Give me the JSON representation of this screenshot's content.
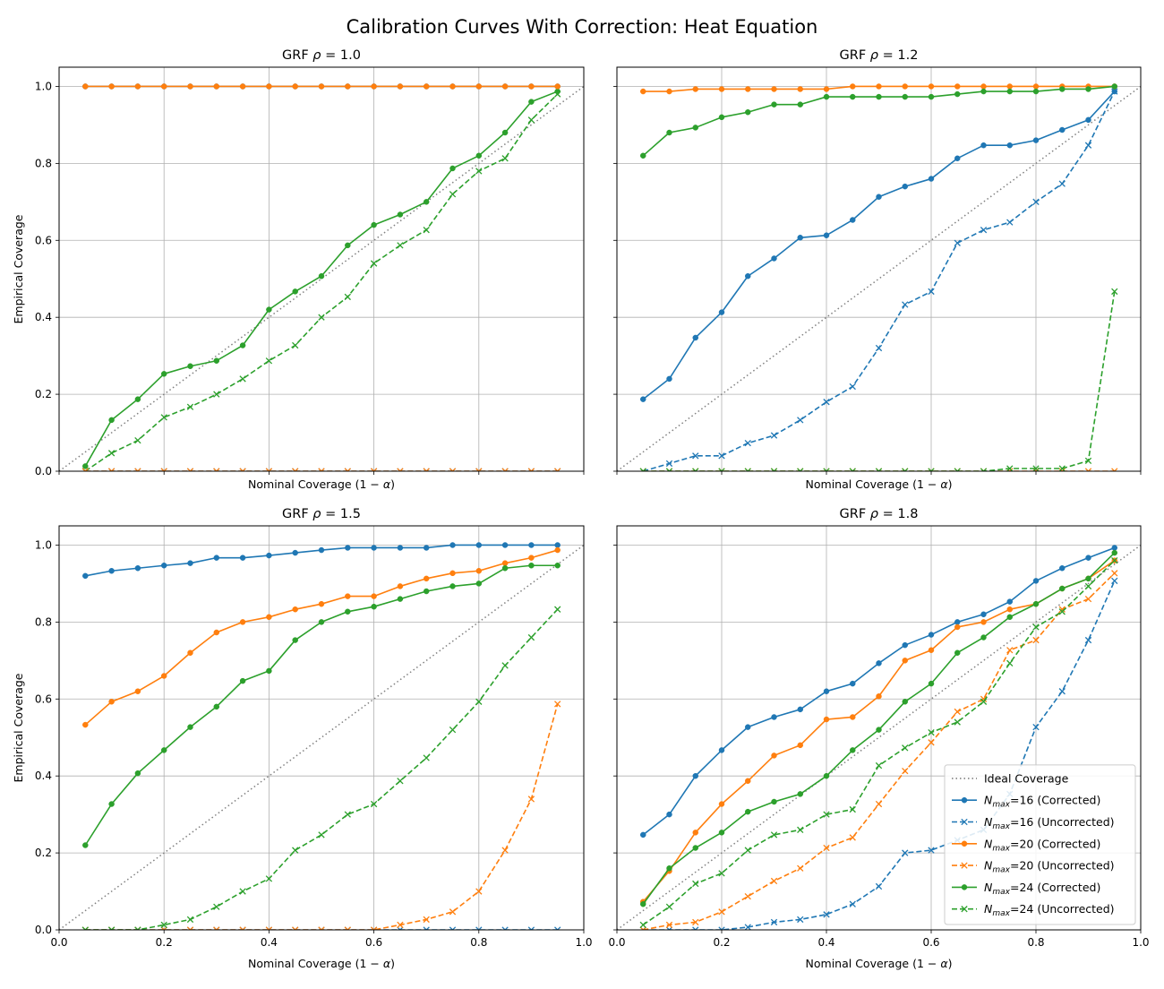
{
  "figure": {
    "title": "Calibration Curves With Correction: Heat Equation"
  },
  "colors": {
    "ideal": "#808080",
    "n16": "#1f77b4",
    "n20": "#ff7f0e",
    "n24": "#2ca02c",
    "grid": "#b0b0b0"
  },
  "chart_data": [
    {
      "type": "line",
      "title_prefix": "GRF ",
      "title_symbol": "ρ",
      "title_value": " = 1.0",
      "xlabel": "Nominal Coverage (1 − α)",
      "ylabel": "Empirical Coverage",
      "xlim": [
        0,
        1
      ],
      "ylim": [
        0,
        1.05
      ],
      "show_xticklabels": false,
      "show_yticklabels": true,
      "show_legend": false,
      "x": [
        0.05,
        0.1,
        0.15,
        0.2,
        0.25,
        0.3,
        0.35,
        0.4,
        0.45,
        0.5,
        0.55,
        0.6,
        0.65,
        0.7,
        0.75,
        0.8,
        0.85,
        0.9,
        0.95
      ],
      "series": [
        {
          "name": "N16 Corrected",
          "color_key": "n16",
          "style": "solid",
          "marker": "dot",
          "values": [
            1,
            1,
            1,
            1,
            1,
            1,
            1,
            1,
            1,
            1,
            1,
            1,
            1,
            1,
            1,
            1,
            1,
            1,
            1
          ]
        },
        {
          "name": "N16 Uncorrected",
          "color_key": "n16",
          "style": "dashed",
          "marker": "x",
          "values": [
            0,
            0,
            0,
            0,
            0,
            0,
            0,
            0,
            0,
            0,
            0,
            0,
            0,
            0,
            0,
            0,
            0,
            0,
            0
          ]
        },
        {
          "name": "N24 Corrected",
          "color_key": "n24",
          "style": "solid",
          "marker": "dot",
          "values": [
            0.013,
            0.133,
            0.187,
            0.253,
            0.273,
            0.287,
            0.327,
            0.42,
            0.467,
            0.507,
            0.587,
            0.64,
            0.667,
            0.7,
            0.787,
            0.82,
            0.88,
            0.96,
            0.987
          ]
        },
        {
          "name": "N24 Uncorrected",
          "color_key": "n24",
          "style": "dashed",
          "marker": "x",
          "values": [
            0,
            0.047,
            0.08,
            0.14,
            0.167,
            0.2,
            0.24,
            0.287,
            0.327,
            0.4,
            0.453,
            0.54,
            0.587,
            0.627,
            0.72,
            0.78,
            0.813,
            0.913,
            0.98
          ]
        },
        {
          "name": "N20 Corrected",
          "color_key": "n20",
          "style": "solid",
          "marker": "dot",
          "values": [
            1,
            1,
            1,
            1,
            1,
            1,
            1,
            1,
            1,
            1,
            1,
            1,
            1,
            1,
            1,
            1,
            1,
            1,
            1
          ]
        },
        {
          "name": "N20 Uncorrected",
          "color_key": "n20",
          "style": "dashed",
          "marker": "x",
          "values": [
            0,
            0,
            0,
            0,
            0,
            0,
            0,
            0,
            0,
            0,
            0,
            0,
            0,
            0,
            0,
            0,
            0,
            0,
            0
          ]
        }
      ]
    },
    {
      "type": "line",
      "title_prefix": "GRF ",
      "title_symbol": "ρ",
      "title_value": " = 1.2",
      "xlabel": "Nominal Coverage (1 − α)",
      "ylabel": "",
      "xlim": [
        0,
        1
      ],
      "ylim": [
        0,
        1.05
      ],
      "show_xticklabels": false,
      "show_yticklabels": false,
      "show_legend": false,
      "x": [
        0.05,
        0.1,
        0.15,
        0.2,
        0.25,
        0.3,
        0.35,
        0.4,
        0.45,
        0.5,
        0.55,
        0.6,
        0.65,
        0.7,
        0.75,
        0.8,
        0.85,
        0.9,
        0.95
      ],
      "series": [
        {
          "name": "N16 Corrected",
          "color_key": "n16",
          "style": "solid",
          "marker": "dot",
          "values": [
            0.187,
            0.24,
            0.347,
            0.413,
            0.507,
            0.553,
            0.607,
            0.613,
            0.653,
            0.713,
            0.74,
            0.76,
            0.813,
            0.847,
            0.847,
            0.86,
            0.887,
            0.913,
            0.987
          ]
        },
        {
          "name": "N16 Uncorrected",
          "color_key": "n16",
          "style": "dashed",
          "marker": "x",
          "values": [
            0,
            0.02,
            0.04,
            0.04,
            0.073,
            0.093,
            0.133,
            0.18,
            0.22,
            0.32,
            0.433,
            0.467,
            0.593,
            0.627,
            0.647,
            0.7,
            0.747,
            0.847,
            0.987
          ]
        },
        {
          "name": "N20 Corrected",
          "color_key": "n20",
          "style": "solid",
          "marker": "dot",
          "values": [
            0.987,
            0.987,
            0.993,
            0.993,
            0.993,
            0.993,
            0.993,
            0.993,
            1,
            1,
            1,
            1,
            1,
            1,
            1,
            1,
            1,
            1,
            1
          ]
        },
        {
          "name": "N20 Uncorrected",
          "color_key": "n20",
          "style": "dashed",
          "marker": "x",
          "values": [
            0,
            0,
            0,
            0,
            0,
            0,
            0,
            0,
            0,
            0,
            0,
            0,
            0,
            0,
            0,
            0,
            0,
            0,
            0
          ]
        },
        {
          "name": "N24 Corrected",
          "color_key": "n24",
          "style": "solid",
          "marker": "dot",
          "values": [
            0.82,
            0.88,
            0.893,
            0.92,
            0.933,
            0.953,
            0.953,
            0.973,
            0.973,
            0.973,
            0.973,
            0.973,
            0.98,
            0.987,
            0.987,
            0.987,
            0.993,
            0.993,
            1
          ]
        },
        {
          "name": "N24 Uncorrected",
          "color_key": "n24",
          "style": "dashed",
          "marker": "x",
          "values": [
            0,
            0,
            0,
            0,
            0,
            0,
            0,
            0,
            0,
            0,
            0,
            0,
            0,
            0,
            0.007,
            0.007,
            0.007,
            0.027,
            0.467
          ]
        }
      ]
    },
    {
      "type": "line",
      "title_prefix": "GRF ",
      "title_symbol": "ρ",
      "title_value": " = 1.5",
      "xlabel": "Nominal Coverage (1 − α)",
      "ylabel": "Empirical Coverage",
      "xlim": [
        0,
        1
      ],
      "ylim": [
        0,
        1.05
      ],
      "show_xticklabels": true,
      "show_yticklabels": true,
      "show_legend": false,
      "x": [
        0.05,
        0.1,
        0.15,
        0.2,
        0.25,
        0.3,
        0.35,
        0.4,
        0.45,
        0.5,
        0.55,
        0.6,
        0.65,
        0.7,
        0.75,
        0.8,
        0.85,
        0.9,
        0.95
      ],
      "series": [
        {
          "name": "N16 Corrected",
          "color_key": "n16",
          "style": "solid",
          "marker": "dot",
          "values": [
            0.92,
            0.933,
            0.94,
            0.947,
            0.953,
            0.967,
            0.967,
            0.973,
            0.98,
            0.987,
            0.993,
            0.993,
            0.993,
            0.993,
            1,
            1,
            1,
            1,
            1
          ]
        },
        {
          "name": "N16 Uncorrected",
          "color_key": "n16",
          "style": "dashed",
          "marker": "x",
          "values": [
            0,
            0,
            0,
            0,
            0,
            0,
            0,
            0,
            0,
            0,
            0,
            0,
            0,
            0,
            0,
            0,
            0,
            0,
            0
          ]
        },
        {
          "name": "N20 Corrected",
          "color_key": "n20",
          "style": "solid",
          "marker": "dot",
          "values": [
            0.533,
            0.593,
            0.62,
            0.66,
            0.72,
            0.773,
            0.8,
            0.813,
            0.833,
            0.847,
            0.867,
            0.867,
            0.893,
            0.913,
            0.927,
            0.933,
            0.953,
            0.967,
            0.987
          ]
        },
        {
          "name": "N20 Uncorrected",
          "color_key": "n20",
          "style": "dashed",
          "marker": "x",
          "values": [
            0,
            0,
            0,
            0,
            0,
            0,
            0,
            0,
            0,
            0,
            0,
            0,
            0.013,
            0.027,
            0.047,
            0.1,
            0.207,
            0.34,
            0.587
          ]
        },
        {
          "name": "N24 Corrected",
          "color_key": "n24",
          "style": "solid",
          "marker": "dot",
          "values": [
            0.22,
            0.327,
            0.407,
            0.467,
            0.527,
            0.58,
            0.647,
            0.673,
            0.753,
            0.8,
            0.827,
            0.84,
            0.86,
            0.88,
            0.893,
            0.9,
            0.94,
            0.947,
            0.947
          ]
        },
        {
          "name": "N24 Uncorrected",
          "color_key": "n24",
          "style": "dashed",
          "marker": "x",
          "values": [
            0,
            0,
            0,
            0.013,
            0.027,
            0.06,
            0.1,
            0.133,
            0.207,
            0.247,
            0.3,
            0.327,
            0.387,
            0.447,
            0.52,
            0.593,
            0.687,
            0.76,
            0.833
          ]
        }
      ]
    },
    {
      "type": "line",
      "title_prefix": "GRF ",
      "title_symbol": "ρ",
      "title_value": " = 1.8",
      "xlabel": "Nominal Coverage (1 − α)",
      "ylabel": "",
      "xlim": [
        0,
        1
      ],
      "ylim": [
        0,
        1.05
      ],
      "show_xticklabels": true,
      "show_yticklabels": false,
      "show_legend": true,
      "x": [
        0.05,
        0.1,
        0.15,
        0.2,
        0.25,
        0.3,
        0.35,
        0.4,
        0.45,
        0.5,
        0.55,
        0.6,
        0.65,
        0.7,
        0.75,
        0.8,
        0.85,
        0.9,
        0.95
      ],
      "series": [
        {
          "name": "N16 Corrected",
          "color_key": "n16",
          "style": "solid",
          "marker": "dot",
          "values": [
            0.247,
            0.3,
            0.4,
            0.467,
            0.527,
            0.553,
            0.573,
            0.62,
            0.64,
            0.693,
            0.74,
            0.767,
            0.8,
            0.82,
            0.853,
            0.907,
            0.94,
            0.967,
            0.993
          ]
        },
        {
          "name": "N16 Uncorrected",
          "color_key": "n16",
          "style": "dashed",
          "marker": "x",
          "values": [
            0,
            0,
            0,
            0,
            0.007,
            0.02,
            0.027,
            0.04,
            0.067,
            0.113,
            0.2,
            0.207,
            0.233,
            0.26,
            0.353,
            0.527,
            0.62,
            0.753,
            0.907
          ]
        },
        {
          "name": "N20 Corrected",
          "color_key": "n20",
          "style": "solid",
          "marker": "dot",
          "values": [
            0.073,
            0.153,
            0.253,
            0.327,
            0.387,
            0.453,
            0.48,
            0.547,
            0.553,
            0.607,
            0.7,
            0.727,
            0.787,
            0.8,
            0.833,
            0.847,
            0.887,
            0.913,
            0.96
          ]
        },
        {
          "name": "N20 Uncorrected",
          "color_key": "n20",
          "style": "dashed",
          "marker": "x",
          "values": [
            0,
            0.013,
            0.02,
            0.047,
            0.087,
            0.127,
            0.16,
            0.213,
            0.24,
            0.327,
            0.413,
            0.487,
            0.567,
            0.6,
            0.727,
            0.753,
            0.833,
            0.86,
            0.927
          ]
        },
        {
          "name": "N24 Corrected",
          "color_key": "n24",
          "style": "solid",
          "marker": "dot",
          "values": [
            0.067,
            0.16,
            0.213,
            0.253,
            0.307,
            0.333,
            0.353,
            0.4,
            0.467,
            0.52,
            0.593,
            0.64,
            0.72,
            0.76,
            0.813,
            0.847,
            0.887,
            0.913,
            0.98
          ]
        },
        {
          "name": "N24 Uncorrected",
          "color_key": "n24",
          "style": "dashed",
          "marker": "x",
          "values": [
            0.013,
            0.06,
            0.12,
            0.147,
            0.207,
            0.247,
            0.26,
            0.3,
            0.313,
            0.427,
            0.473,
            0.513,
            0.54,
            0.593,
            0.693,
            0.787,
            0.827,
            0.893,
            0.96
          ]
        }
      ]
    }
  ],
  "legend": {
    "entries": [
      {
        "label": "Ideal Coverage",
        "color_key": "ideal",
        "style": "dotted",
        "marker": "none",
        "sym": "",
        "sub": "",
        "rest": ""
      },
      {
        "label": "N_max=16 (Corrected)",
        "color_key": "n16",
        "style": "solid",
        "marker": "dot",
        "sym": "N",
        "sub": "max",
        "rest": "=16 (Corrected)"
      },
      {
        "label": "N_max=16 (Uncorrected)",
        "color_key": "n16",
        "style": "dashed",
        "marker": "x",
        "sym": "N",
        "sub": "max",
        "rest": "=16 (Uncorrected)"
      },
      {
        "label": "N_max=20 (Corrected)",
        "color_key": "n20",
        "style": "solid",
        "marker": "dot",
        "sym": "N",
        "sub": "max",
        "rest": "=20 (Corrected)"
      },
      {
        "label": "N_max=20 (Uncorrected)",
        "color_key": "n20",
        "style": "dashed",
        "marker": "x",
        "sym": "N",
        "sub": "max",
        "rest": "=20 (Uncorrected)"
      },
      {
        "label": "N_max=24 (Corrected)",
        "color_key": "n24",
        "style": "solid",
        "marker": "dot",
        "sym": "N",
        "sub": "max",
        "rest": "=24 (Corrected)"
      },
      {
        "label": "N_max=24 (Uncorrected)",
        "color_key": "n24",
        "style": "dashed",
        "marker": "x",
        "sym": "N",
        "sub": "max",
        "rest": "=24 (Uncorrected)"
      }
    ]
  },
  "ticks": {
    "x": [
      "0.0",
      "0.2",
      "0.4",
      "0.6",
      "0.8",
      "1.0"
    ],
    "y": [
      "0.0",
      "0.2",
      "0.4",
      "0.6",
      "0.8",
      "1.0"
    ]
  }
}
